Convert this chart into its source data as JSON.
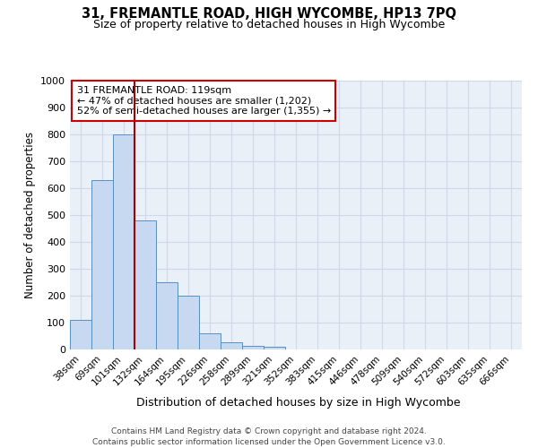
{
  "title": "31, FREMANTLE ROAD, HIGH WYCOMBE, HP13 7PQ",
  "subtitle": "Size of property relative to detached houses in High Wycombe",
  "xlabel": "Distribution of detached houses by size in High Wycombe",
  "ylabel": "Number of detached properties",
  "bar_labels": [
    "38sqm",
    "69sqm",
    "101sqm",
    "132sqm",
    "164sqm",
    "195sqm",
    "226sqm",
    "258sqm",
    "289sqm",
    "321sqm",
    "352sqm",
    "383sqm",
    "415sqm",
    "446sqm",
    "478sqm",
    "509sqm",
    "540sqm",
    "572sqm",
    "603sqm",
    "635sqm",
    "666sqm"
  ],
  "bar_values": [
    110,
    630,
    800,
    480,
    250,
    200,
    60,
    28,
    15,
    10,
    0,
    0,
    0,
    0,
    0,
    0,
    0,
    0,
    0,
    0,
    0
  ],
  "bar_color": "#c6d9f0",
  "bar_edge_color": "#5a8fc3",
  "vline_color": "#aa0000",
  "ylim": [
    0,
    1000
  ],
  "yticks": [
    0,
    100,
    200,
    300,
    400,
    500,
    600,
    700,
    800,
    900,
    1000
  ],
  "annotation_line1": "31 FREMANTLE ROAD: 119sqm",
  "annotation_line2": "← 47% of detached houses are smaller (1,202)",
  "annotation_line3": "52% of semi-detached houses are larger (1,355) →",
  "annotation_box_color": "#ffffff",
  "annotation_box_edge": "#cc0000",
  "footer_line1": "Contains HM Land Registry data © Crown copyright and database right 2024.",
  "footer_line2": "Contains public sector information licensed under the Open Government Licence v3.0.",
  "grid_color": "#d0d8e8",
  "background_color": "#eaf0f8"
}
